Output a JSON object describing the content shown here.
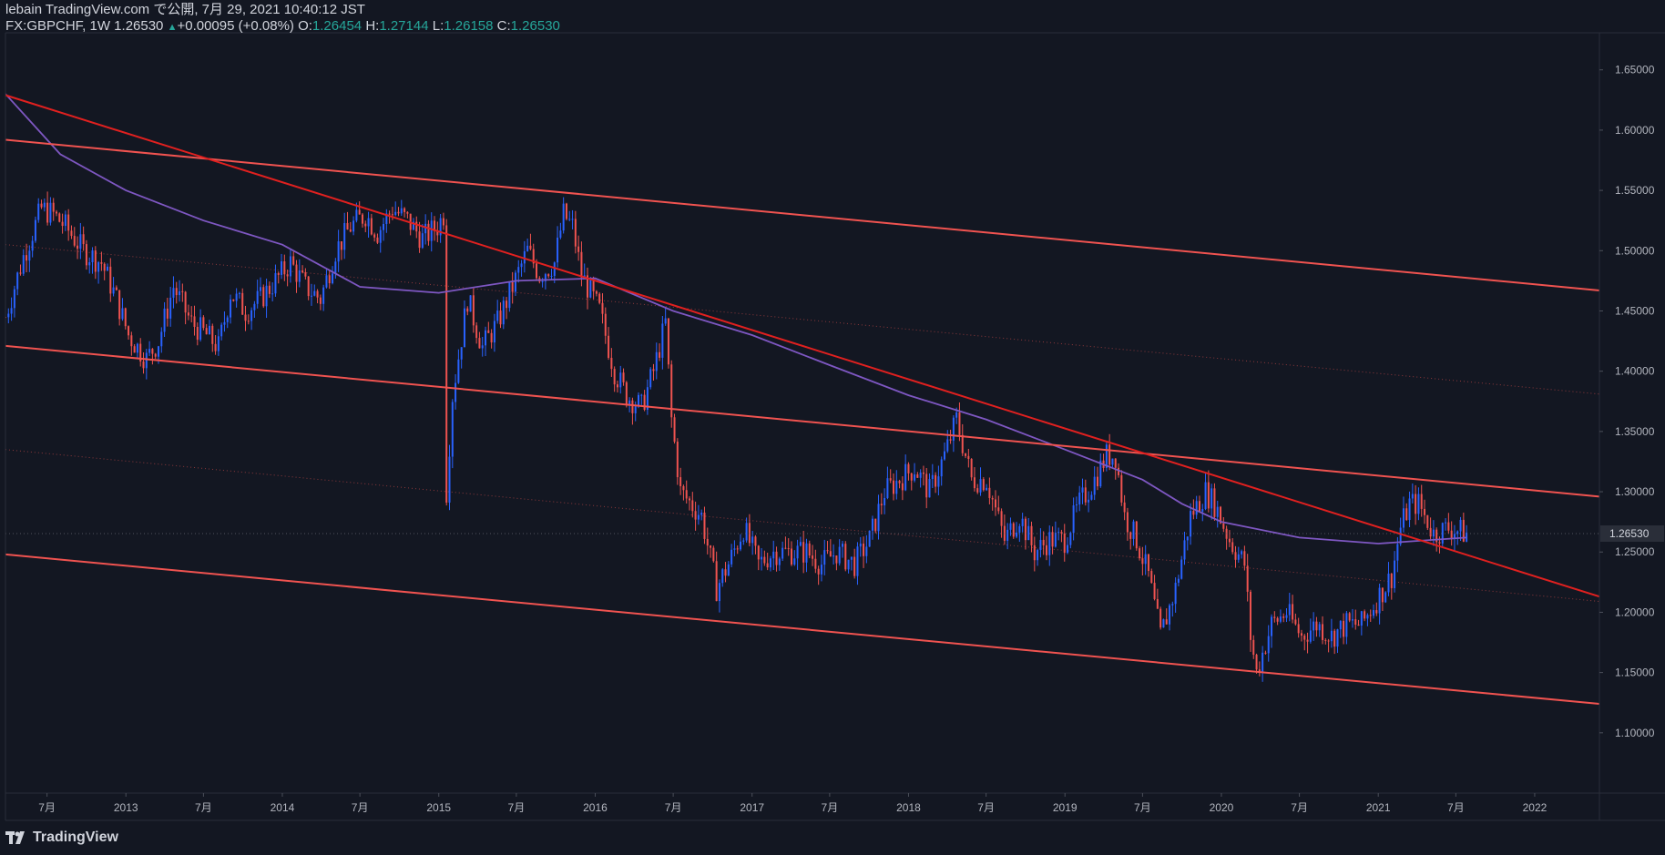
{
  "header": {
    "line1": "lebain TradingView.com で公開, 7月 29, 2021 10:40:12 JST",
    "symbol": "FX:GBPCHF, 1W 1.26530",
    "change": "+0.00095 (+0.08%)",
    "o_label": "O:",
    "o_value": "1.26454",
    "h_label": "H:",
    "h_value": "1.27144",
    "l_label": "L:",
    "l_value": "1.26158",
    "c_label": "C:",
    "c_value": "1.26530"
  },
  "footer": {
    "brand": "TradingView"
  },
  "colors": {
    "background": "#131722",
    "bull": "#2962ff",
    "bear": "#ef5350",
    "ma": "#7e57c2",
    "channel": "#f05350",
    "trendline": "#e0201f",
    "accent_text": "#26a69a"
  },
  "chart_data": {
    "type": "candlestick",
    "symbol": "FX:GBPCHF",
    "interval": "1W",
    "ylim": [
      1.05,
      1.68
    ],
    "y_ticks": [
      1.1,
      1.15,
      1.2,
      1.25,
      1.3,
      1.35,
      1.4,
      1.45,
      1.5,
      1.55,
      1.6,
      1.65
    ],
    "y_tick_labels": [
      "1.10000",
      "1.15000",
      "1.20000",
      "1.25000",
      "1.30000",
      "1.35000",
      "1.40000",
      "1.45000",
      "1.50000",
      "1.55000",
      "1.60000",
      "1.65000"
    ],
    "x_range": [
      "2012-03-26",
      "2022-06-01"
    ],
    "x_ticks": [
      {
        "date": "2012-07-01",
        "label": "7月"
      },
      {
        "date": "2013-01-01",
        "label": "2013"
      },
      {
        "date": "2013-07-01",
        "label": "7月"
      },
      {
        "date": "2014-01-01",
        "label": "2014"
      },
      {
        "date": "2014-07-01",
        "label": "7月"
      },
      {
        "date": "2015-01-01",
        "label": "2015"
      },
      {
        "date": "2015-07-01",
        "label": "7月"
      },
      {
        "date": "2016-01-01",
        "label": "2016"
      },
      {
        "date": "2016-07-01",
        "label": "7月"
      },
      {
        "date": "2017-01-01",
        "label": "2017"
      },
      {
        "date": "2017-07-01",
        "label": "7月"
      },
      {
        "date": "2018-01-01",
        "label": "2018"
      },
      {
        "date": "2018-07-01",
        "label": "7月"
      },
      {
        "date": "2019-01-01",
        "label": "2019"
      },
      {
        "date": "2019-07-01",
        "label": "7月"
      },
      {
        "date": "2020-01-01",
        "label": "2020"
      },
      {
        "date": "2020-07-01",
        "label": "7月"
      },
      {
        "date": "2021-01-01",
        "label": "2021"
      },
      {
        "date": "2021-07-01",
        "label": "7月"
      },
      {
        "date": "2022-01-01",
        "label": "2022"
      }
    ],
    "last_price": 1.2653,
    "last_price_label": "1.26530",
    "price_path": [
      [
        "2012-03-26",
        1.445
      ],
      [
        "2012-05-07",
        1.495
      ],
      [
        "2012-06-18",
        1.535
      ],
      [
        "2012-07-16",
        1.53
      ],
      [
        "2012-08-13",
        1.52
      ],
      [
        "2012-09-24",
        1.5
      ],
      [
        "2012-11-05",
        1.49
      ],
      [
        "2012-12-10",
        1.46
      ],
      [
        "2013-01-07",
        1.43
      ],
      [
        "2013-02-18",
        1.41
      ],
      [
        "2013-03-18",
        1.425
      ],
      [
        "2013-04-22",
        1.47
      ],
      [
        "2013-06-03",
        1.44
      ],
      [
        "2013-07-08",
        1.43
      ],
      [
        "2013-08-05",
        1.42
      ],
      [
        "2013-09-02",
        1.465
      ],
      [
        "2013-10-07",
        1.45
      ],
      [
        "2013-11-11",
        1.46
      ],
      [
        "2013-12-16",
        1.475
      ],
      [
        "2014-01-20",
        1.49
      ],
      [
        "2014-02-24",
        1.47
      ],
      [
        "2014-03-31",
        1.46
      ],
      [
        "2014-05-05",
        1.5
      ],
      [
        "2014-06-09",
        1.52
      ],
      [
        "2014-07-14",
        1.53
      ],
      [
        "2014-08-11",
        1.515
      ],
      [
        "2014-09-15",
        1.535
      ],
      [
        "2014-10-20",
        1.525
      ],
      [
        "2014-11-24",
        1.51
      ],
      [
        "2014-12-29",
        1.52
      ],
      [
        "2015-01-12",
        1.53
      ],
      [
        "2015-01-19",
        1.3
      ],
      [
        "2015-02-02",
        1.38
      ],
      [
        "2015-03-09",
        1.46
      ],
      [
        "2015-04-13",
        1.42
      ],
      [
        "2015-05-18",
        1.44
      ],
      [
        "2015-06-22",
        1.47
      ],
      [
        "2015-07-27",
        1.5
      ],
      [
        "2015-08-24",
        1.48
      ],
      [
        "2015-09-28",
        1.49
      ],
      [
        "2015-10-19",
        1.53
      ],
      [
        "2015-11-09",
        1.52
      ],
      [
        "2015-11-30",
        1.48
      ],
      [
        "2016-01-11",
        1.45
      ],
      [
        "2016-02-15",
        1.4
      ],
      [
        "2016-03-14",
        1.38
      ],
      [
        "2016-04-18",
        1.37
      ],
      [
        "2016-05-16",
        1.4
      ],
      [
        "2016-06-13",
        1.44
      ],
      [
        "2016-06-27",
        1.36
      ],
      [
        "2016-07-18",
        1.3
      ],
      [
        "2016-09-05",
        1.28
      ],
      [
        "2016-10-10",
        1.22
      ],
      [
        "2016-11-07",
        1.24
      ],
      [
        "2016-12-12",
        1.27
      ],
      [
        "2017-01-16",
        1.24
      ],
      [
        "2017-02-20",
        1.25
      ],
      [
        "2017-04-03",
        1.25
      ],
      [
        "2017-05-08",
        1.25
      ],
      [
        "2017-06-12",
        1.24
      ],
      [
        "2017-07-17",
        1.25
      ],
      [
        "2017-08-28",
        1.24
      ],
      [
        "2017-10-02",
        1.26
      ],
      [
        "2017-11-06",
        1.3
      ],
      [
        "2017-12-11",
        1.31
      ],
      [
        "2018-01-15",
        1.32
      ],
      [
        "2018-02-19",
        1.3
      ],
      [
        "2018-03-26",
        1.33
      ],
      [
        "2018-04-23",
        1.36
      ],
      [
        "2018-05-28",
        1.31
      ],
      [
        "2018-07-02",
        1.31
      ],
      [
        "2018-08-13",
        1.26
      ],
      [
        "2018-09-17",
        1.28
      ],
      [
        "2018-10-22",
        1.25
      ],
      [
        "2018-11-26",
        1.26
      ],
      [
        "2018-12-31",
        1.26
      ],
      [
        "2019-02-04",
        1.29
      ],
      [
        "2019-03-11",
        1.31
      ],
      [
        "2019-04-08",
        1.33
      ],
      [
        "2019-04-29",
        1.33
      ],
      [
        "2019-05-20",
        1.28
      ],
      [
        "2019-06-17",
        1.26
      ],
      [
        "2019-07-15",
        1.23
      ],
      [
        "2019-08-12",
        1.18
      ],
      [
        "2019-09-16",
        1.22
      ],
      [
        "2019-10-21",
        1.28
      ],
      [
        "2019-11-25",
        1.3
      ],
      [
        "2019-12-16",
        1.29
      ],
      [
        "2020-01-20",
        1.26
      ],
      [
        "2020-02-24",
        1.24
      ],
      [
        "2020-03-09",
        1.18
      ],
      [
        "2020-03-23",
        1.15
      ],
      [
        "2020-04-27",
        1.19
      ],
      [
        "2020-06-01",
        1.2
      ],
      [
        "2020-07-06",
        1.18
      ],
      [
        "2020-08-10",
        1.19
      ],
      [
        "2020-09-14",
        1.18
      ],
      [
        "2020-10-19",
        1.19
      ],
      [
        "2020-11-23",
        1.19
      ],
      [
        "2020-12-28",
        1.21
      ],
      [
        "2021-02-01",
        1.23
      ],
      [
        "2021-02-22",
        1.27
      ],
      [
        "2021-03-15",
        1.29
      ],
      [
        "2021-04-05",
        1.29
      ],
      [
        "2021-05-10",
        1.265
      ],
      [
        "2021-06-14",
        1.27
      ],
      [
        "2021-07-26",
        1.2653
      ]
    ],
    "ma_path": [
      [
        "2012-03-26",
        1.63
      ],
      [
        "2012-08-01",
        1.58
      ],
      [
        "2013-01-01",
        1.55
      ],
      [
        "2013-07-01",
        1.525
      ],
      [
        "2014-01-01",
        1.505
      ],
      [
        "2014-07-01",
        1.47
      ],
      [
        "2015-01-01",
        1.465
      ],
      [
        "2015-07-01",
        1.475
      ],
      [
        "2016-01-01",
        1.477
      ],
      [
        "2016-07-01",
        1.45
      ],
      [
        "2017-01-01",
        1.43
      ],
      [
        "2017-07-01",
        1.405
      ],
      [
        "2018-01-01",
        1.38
      ],
      [
        "2018-07-01",
        1.36
      ],
      [
        "2019-01-01",
        1.335
      ],
      [
        "2019-07-01",
        1.31
      ],
      [
        "2019-10-01",
        1.29
      ],
      [
        "2020-01-01",
        1.275
      ],
      [
        "2020-07-01",
        1.262
      ],
      [
        "2021-01-01",
        1.257
      ],
      [
        "2021-07-26",
        1.262
      ]
    ],
    "lines": [
      {
        "name": "channel_upper",
        "p1": [
          "2012-03-26",
          1.592
        ],
        "p2": [
          "2022-06-01",
          1.467
        ]
      },
      {
        "name": "channel_mid",
        "p1": [
          "2012-03-26",
          1.421
        ],
        "p2": [
          "2022-06-01",
          1.296
        ]
      },
      {
        "name": "channel_lower",
        "p1": [
          "2012-03-26",
          1.248
        ],
        "p2": [
          "2022-06-01",
          1.124
        ]
      },
      {
        "name": "mid_dotted_upper",
        "p1": [
          "2012-03-26",
          1.505
        ],
        "p2": [
          "2022-06-01",
          1.381
        ]
      },
      {
        "name": "mid_dotted_lower",
        "p1": [
          "2012-03-26",
          1.335
        ],
        "p2": [
          "2022-06-01",
          1.209
        ]
      },
      {
        "name": "trendline",
        "p1": [
          "2012-03-26",
          1.629
        ],
        "p2": [
          "2022-06-01",
          1.213
        ]
      }
    ],
    "grid": false,
    "legend": "none"
  }
}
